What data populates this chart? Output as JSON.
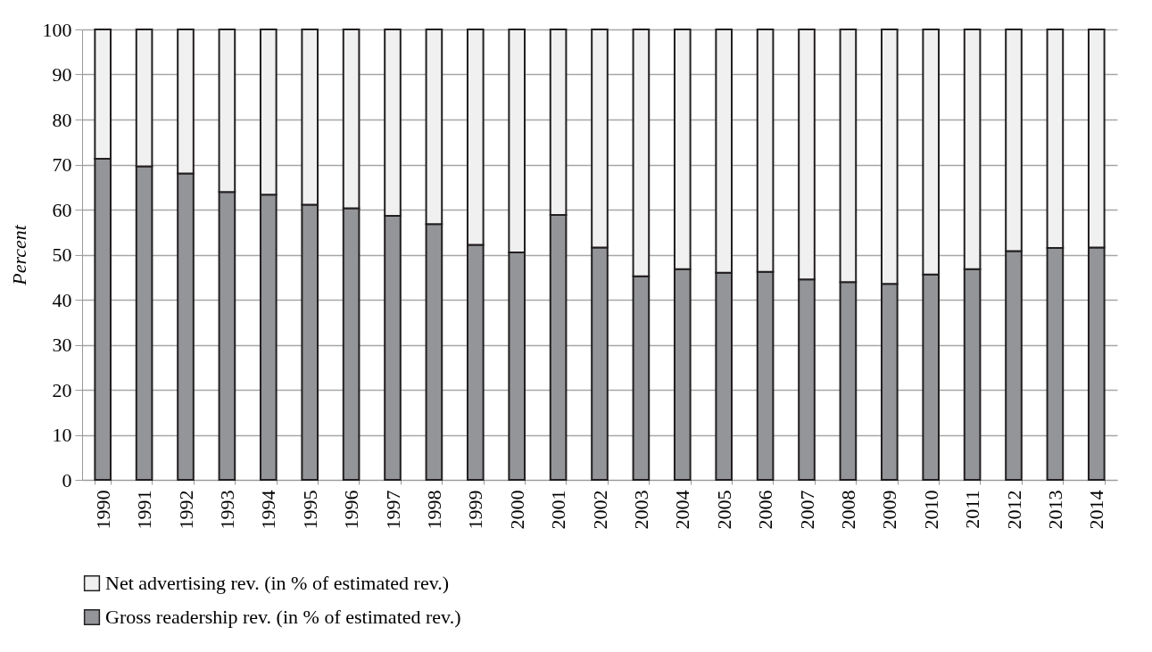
{
  "chart_data": {
    "type": "bar",
    "stacked": true,
    "ylabel": "Percent",
    "categories": [
      "1990",
      "1991",
      "1992",
      "1993",
      "1994",
      "1995",
      "1996",
      "1997",
      "1998",
      "1999",
      "2000",
      "2001",
      "2002",
      "2003",
      "2004",
      "2005",
      "2006",
      "2007",
      "2008",
      "2009",
      "2010",
      "2011",
      "2012",
      "2013",
      "2014"
    ],
    "series": [
      {
        "name": "Gross readership rev. (in % of estimated rev.)",
        "color": "#939598",
        "values": [
          71.3,
          69.6,
          68,
          63.9,
          63.3,
          61.1,
          60.3,
          58.6,
          56.8,
          52.2,
          50.5,
          58.8,
          51.6,
          45.2,
          46.8,
          46,
          46.2,
          44.5,
          43.9,
          43.5,
          45.6,
          46.8,
          50.8,
          51.5,
          51.6
        ]
      },
      {
        "name": "Net advertising rev. (in % of estimated rev.)",
        "color": "#f0f0f0",
        "values": [
          28.7,
          30.4,
          32,
          36.1,
          36.7,
          38.9,
          39.7,
          41.4,
          43.2,
          47.8,
          49.5,
          41.2,
          48.4,
          54.8,
          53.2,
          54,
          53.8,
          55.5,
          56.1,
          56.5,
          54.4,
          53.2,
          49.2,
          48.5,
          48.4
        ]
      }
    ],
    "ylim": [
      0,
      100
    ],
    "yticks": [
      0,
      10,
      20,
      30,
      40,
      50,
      60,
      70,
      80,
      90,
      100
    ],
    "grid": "y",
    "legend": "bottom"
  }
}
